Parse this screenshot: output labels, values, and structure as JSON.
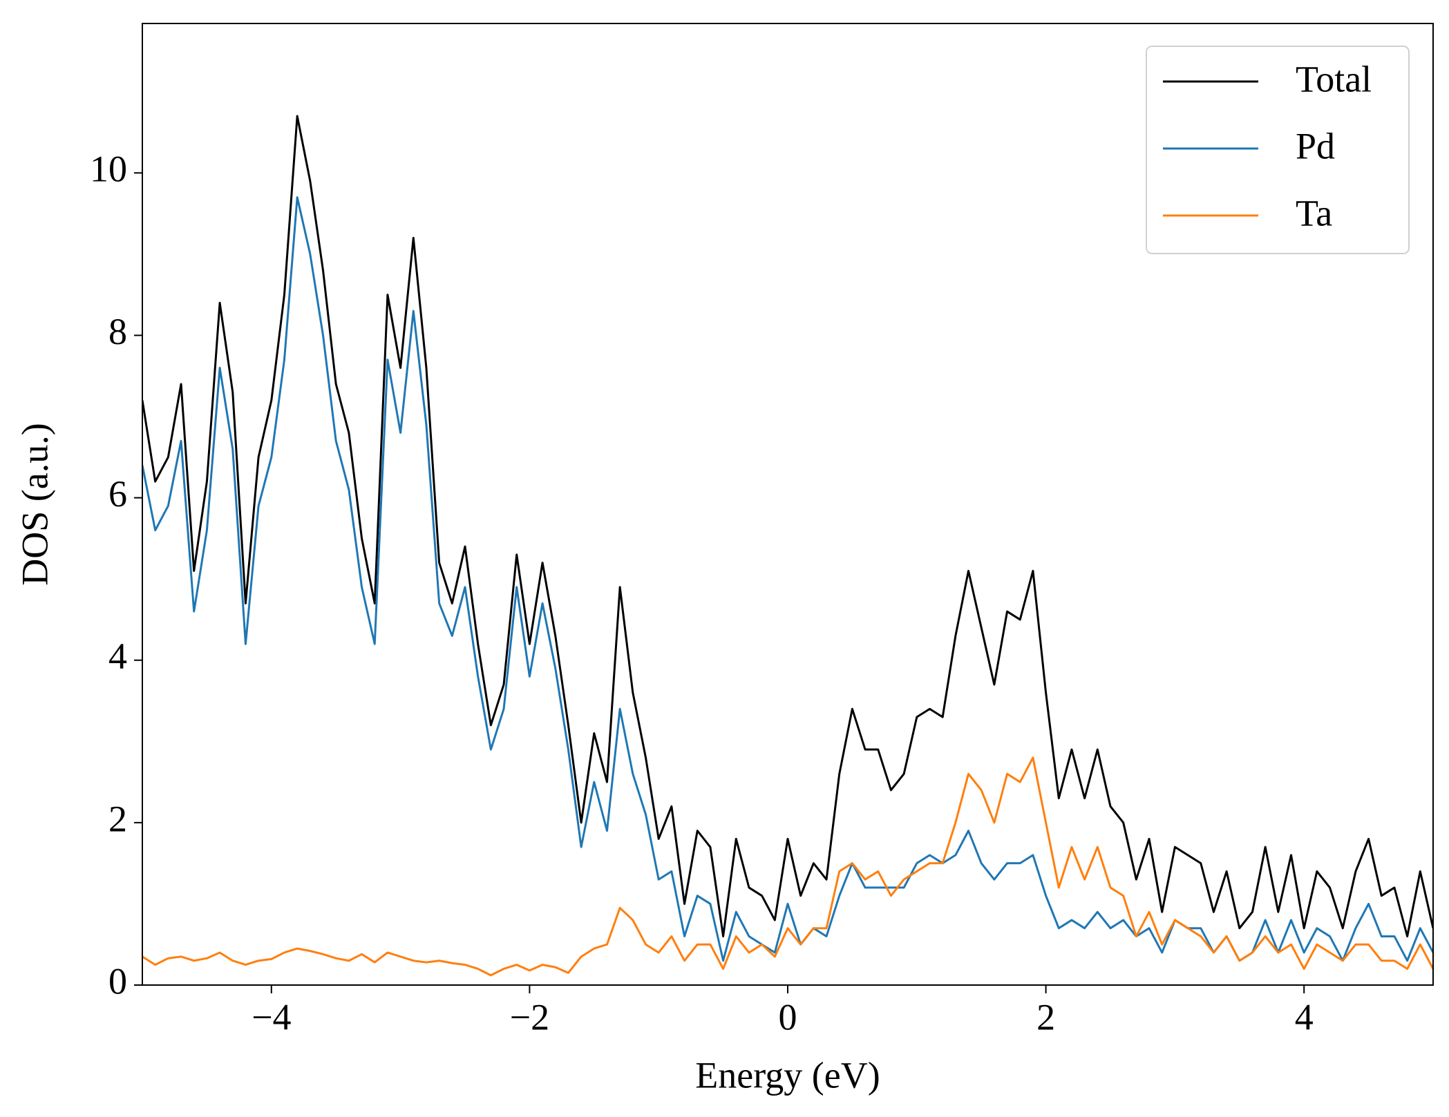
{
  "chart_data": {
    "type": "line",
    "xlabel": "Energy (eV)",
    "ylabel": "DOS (a.u.)",
    "xlim": [
      -5,
      5
    ],
    "ylim": [
      0,
      11.84
    ],
    "xticks": [
      {
        "value": -4,
        "label": "−4"
      },
      {
        "value": -2,
        "label": "−2"
      },
      0,
      2,
      4
    ],
    "yticks": [
      0,
      2,
      4,
      6,
      8,
      10
    ],
    "grid": false,
    "legend": "upper right",
    "x": [
      -5.0,
      -4.9,
      -4.8,
      -4.7,
      -4.6,
      -4.5,
      -4.4,
      -4.3,
      -4.2,
      -4.1,
      -4.0,
      -3.9,
      -3.8,
      -3.7,
      -3.6,
      -3.5,
      -3.4,
      -3.3,
      -3.2,
      -3.1,
      -3.0,
      -2.9,
      -2.8,
      -2.7,
      -2.6,
      -2.5,
      -2.4,
      -2.3,
      -2.2,
      -2.1,
      -2.0,
      -1.9,
      -1.8,
      -1.7,
      -1.6,
      -1.5,
      -1.4,
      -1.3,
      -1.2,
      -1.1,
      -1.0,
      -0.9,
      -0.8,
      -0.7,
      -0.6,
      -0.5,
      -0.4,
      -0.3,
      -0.2,
      -0.1,
      0.0,
      0.1,
      0.2,
      0.3,
      0.4,
      0.5,
      0.6,
      0.7,
      0.8,
      0.9,
      1.0,
      1.1,
      1.2,
      1.3,
      1.4,
      1.5,
      1.6,
      1.7,
      1.8,
      1.9,
      2.0,
      2.1,
      2.2,
      2.3,
      2.4,
      2.5,
      2.6,
      2.7,
      2.8,
      2.9,
      3.0,
      3.1,
      3.2,
      3.3,
      3.4,
      3.5,
      3.6,
      3.7,
      3.8,
      3.9,
      4.0,
      4.1,
      4.2,
      4.3,
      4.4,
      4.5,
      4.6,
      4.7,
      4.8,
      4.9,
      5.0
    ],
    "series": [
      {
        "name": "Total",
        "color": "#000000",
        "values": [
          7.2,
          6.2,
          6.5,
          7.4,
          5.1,
          6.2,
          8.4,
          7.3,
          4.7,
          6.5,
          7.2,
          8.5,
          10.7,
          9.9,
          8.8,
          7.4,
          6.8,
          5.5,
          4.7,
          8.5,
          7.6,
          9.2,
          7.6,
          5.2,
          4.7,
          5.4,
          4.2,
          3.2,
          3.7,
          5.3,
          4.2,
          5.2,
          4.3,
          3.2,
          2.0,
          3.1,
          2.5,
          4.9,
          3.6,
          2.8,
          1.8,
          2.2,
          1.0,
          1.9,
          1.7,
          0.6,
          1.8,
          1.2,
          1.1,
          0.8,
          1.8,
          1.1,
          1.5,
          1.3,
          2.6,
          3.4,
          2.9,
          2.9,
          2.4,
          2.6,
          3.3,
          3.4,
          3.3,
          4.3,
          5.1,
          4.4,
          3.7,
          4.6,
          4.5,
          5.1,
          3.6,
          2.3,
          2.9,
          2.3,
          2.9,
          2.2,
          2.0,
          1.3,
          1.8,
          0.9,
          1.7,
          1.6,
          1.5,
          0.9,
          1.4,
          0.7,
          0.9,
          1.7,
          0.9,
          1.6,
          0.7,
          1.4,
          1.2,
          0.7,
          1.4,
          1.8,
          1.1,
          1.2,
          0.6,
          1.4,
          0.7
        ]
      },
      {
        "name": "Pd",
        "color": "#1f77b4",
        "values": [
          6.4,
          5.6,
          5.9,
          6.7,
          4.6,
          5.6,
          7.6,
          6.6,
          4.2,
          5.9,
          6.5,
          7.7,
          9.7,
          9.0,
          8.0,
          6.7,
          6.1,
          4.9,
          4.2,
          7.7,
          6.8,
          8.3,
          6.9,
          4.7,
          4.3,
          4.9,
          3.8,
          2.9,
          3.4,
          4.9,
          3.8,
          4.7,
          3.9,
          2.9,
          1.7,
          2.5,
          1.9,
          3.4,
          2.6,
          2.1,
          1.3,
          1.4,
          0.6,
          1.1,
          1.0,
          0.3,
          0.9,
          0.6,
          0.5,
          0.4,
          1.0,
          0.5,
          0.7,
          0.6,
          1.1,
          1.5,
          1.2,
          1.2,
          1.2,
          1.2,
          1.5,
          1.6,
          1.5,
          1.6,
          1.9,
          1.5,
          1.3,
          1.5,
          1.5,
          1.6,
          1.1,
          0.7,
          0.8,
          0.7,
          0.9,
          0.7,
          0.8,
          0.6,
          0.7,
          0.4,
          0.8,
          0.7,
          0.7,
          0.4,
          0.6,
          0.3,
          0.4,
          0.8,
          0.4,
          0.8,
          0.4,
          0.7,
          0.6,
          0.3,
          0.7,
          1.0,
          0.6,
          0.6,
          0.3,
          0.7,
          0.4
        ]
      },
      {
        "name": "Ta",
        "color": "#ff7f0e",
        "values": [
          0.35,
          0.25,
          0.33,
          0.35,
          0.3,
          0.33,
          0.4,
          0.3,
          0.25,
          0.3,
          0.32,
          0.4,
          0.45,
          0.42,
          0.38,
          0.33,
          0.3,
          0.38,
          0.28,
          0.4,
          0.35,
          0.3,
          0.28,
          0.3,
          0.27,
          0.25,
          0.2,
          0.12,
          0.2,
          0.25,
          0.18,
          0.25,
          0.22,
          0.15,
          0.35,
          0.45,
          0.5,
          0.95,
          0.8,
          0.5,
          0.4,
          0.6,
          0.3,
          0.5,
          0.5,
          0.2,
          0.6,
          0.4,
          0.5,
          0.35,
          0.7,
          0.5,
          0.7,
          0.7,
          1.4,
          1.5,
          1.3,
          1.4,
          1.1,
          1.3,
          1.4,
          1.5,
          1.5,
          2.0,
          2.6,
          2.4,
          2.0,
          2.6,
          2.5,
          2.8,
          2.0,
          1.2,
          1.7,
          1.3,
          1.7,
          1.2,
          1.1,
          0.6,
          0.9,
          0.5,
          0.8,
          0.7,
          0.6,
          0.4,
          0.6,
          0.3,
          0.4,
          0.6,
          0.4,
          0.5,
          0.2,
          0.5,
          0.4,
          0.3,
          0.5,
          0.5,
          0.3,
          0.3,
          0.2,
          0.5,
          0.2
        ]
      }
    ]
  }
}
